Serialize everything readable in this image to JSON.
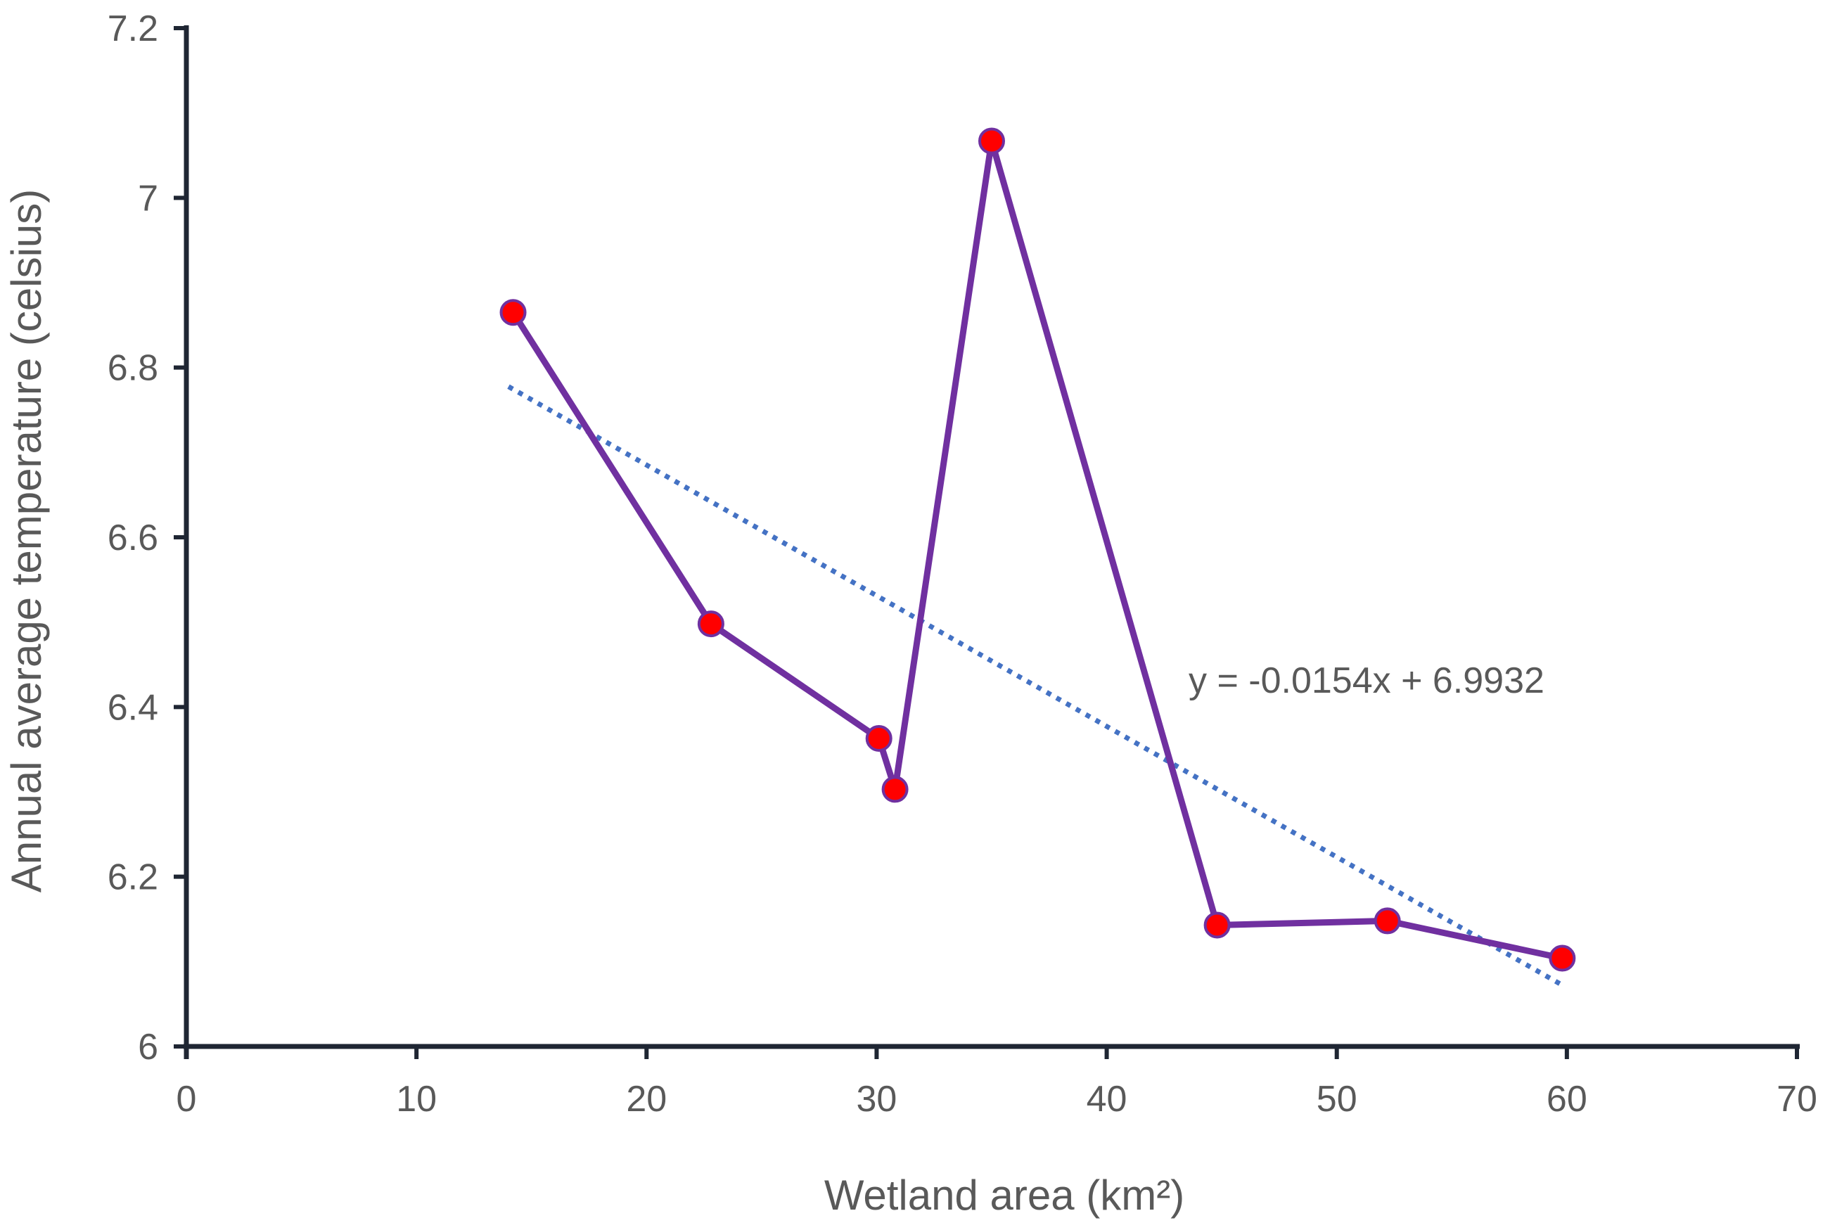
{
  "chart_data": {
    "type": "line",
    "title": "",
    "xlabel": "Wetland area (km²)",
    "ylabel": "Annual average temperature (celsius)",
    "xlim": [
      0,
      70
    ],
    "ylim": [
      6,
      7.2
    ],
    "x_ticks": [
      0,
      10,
      20,
      30,
      40,
      50,
      60,
      70
    ],
    "y_ticks": [
      6,
      6.2,
      6.4,
      6.6,
      6.8,
      7,
      7.2
    ],
    "x_tick_labels": [
      "0",
      "10",
      "20",
      "30",
      "40",
      "50",
      "60",
      "70"
    ],
    "y_tick_labels": [
      "6",
      "6.2",
      "6.4",
      "6.6",
      "6.8",
      "7",
      "7.2"
    ],
    "grid": false,
    "series": [
      {
        "name": "Annual average temperature",
        "x": [
          14.2,
          22.8,
          30.1,
          30.8,
          35.0,
          44.8,
          52.2,
          59.8
        ],
        "y": [
          6.865,
          6.498,
          6.363,
          6.303,
          7.067,
          6.143,
          6.148,
          6.104
        ],
        "line_color": "#7030A0",
        "marker_color": "#FF0000",
        "marker_edge_color": "#7030A0"
      }
    ],
    "trendline": {
      "type": "linear",
      "slope": -0.0154,
      "intercept": 6.9932,
      "x_range": [
        14.0,
        59.8
      ],
      "color": "#4472C4",
      "style": "dotted",
      "equation_label": "y = -0.0154x + 6.9932"
    },
    "axis_color": "#1F2633"
  }
}
